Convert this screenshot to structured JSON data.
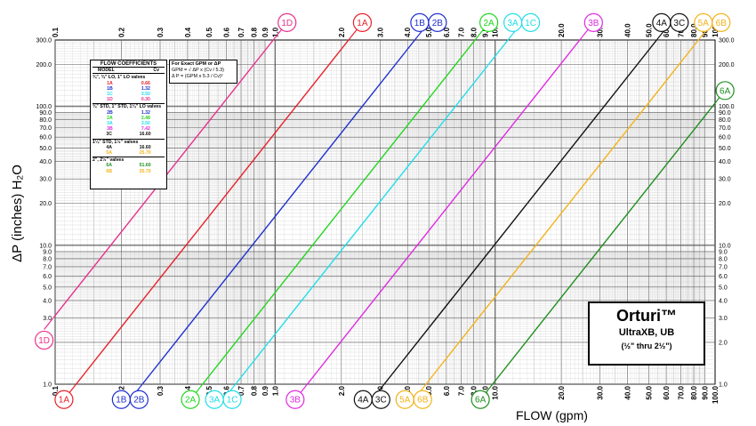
{
  "chart_data": {
    "type": "line",
    "title": "",
    "xlabel": "FLOW (gpm)",
    "ylabel": "ΔP (inches) H₂O",
    "x_scale": "log",
    "y_scale": "log",
    "xlim": [
      0.1,
      100.0
    ],
    "ylim": [
      1.0,
      300.0
    ],
    "x_tick_labels": [
      "0.1",
      "0.2",
      "0.3",
      "0.4",
      "0.5",
      "0.6",
      "0.7",
      "0.8",
      "0.9",
      "1.0",
      "2.0",
      "3.0",
      "4.0",
      "5.0",
      "6.0",
      "7.0",
      "8.0",
      "9.0",
      "10.0",
      "20.0",
      "30.0",
      "40.0",
      "50.0",
      "60.0",
      "70.0",
      "80.0",
      "90.0",
      "100.0"
    ],
    "y_tick_labels": [
      "1.0",
      "2.0",
      "3.0",
      "4.0",
      "5.0",
      "6.0",
      "7.0",
      "8.0",
      "9.0",
      "10.0",
      "20.0",
      "30.0",
      "40.0",
      "50.0",
      "60.0",
      "70.0",
      "80.0",
      "90.0",
      "100.0",
      "200.0",
      "300.0"
    ],
    "grid": true,
    "series": [
      {
        "name": "1A",
        "cv": 0.66,
        "color": "#e8202a",
        "labels": [
          "1A"
        ],
        "bubble_colors": [
          "#e8202a"
        ],
        "bottom_labels": [
          "1A"
        ]
      },
      {
        "name": "1B",
        "cv": 1.32,
        "color": "#1f2fd0",
        "labels": [
          "1B",
          "2B"
        ],
        "bubble_colors": [
          "#1f2fd0",
          "#1f2fd0"
        ],
        "bottom_labels": [
          "1B",
          "2B"
        ]
      },
      {
        "name": "1C",
        "cv": 3.5,
        "color": "#22dde8",
        "labels": [
          "3A",
          "1C"
        ],
        "bubble_colors": [
          "#22dde8",
          "#22dde8"
        ],
        "bottom_labels": [
          "3A",
          "1C"
        ]
      },
      {
        "name": "1D",
        "cv": 0.3,
        "color": "#e8308c",
        "labels": [
          "1D"
        ],
        "bubble_colors": [
          "#e8308c"
        ],
        "bottom_labels": [
          "1D"
        ]
      },
      {
        "name": "2A",
        "cv": 2.48,
        "color": "#22d61f",
        "labels": [
          "2A"
        ],
        "bubble_colors": [
          "#22d61f"
        ],
        "bottom_labels": [
          "2A"
        ]
      },
      {
        "name": "3B",
        "cv": 7.42,
        "color": "#e02ae0",
        "labels": [
          "3B"
        ],
        "bubble_colors": [
          "#e02ae0"
        ],
        "bottom_labels": [
          "3B"
        ]
      },
      {
        "name": "4A",
        "cv": 16.6,
        "color": "#111111",
        "labels": [
          "4A",
          "3C"
        ],
        "bubble_colors": [
          "#111111",
          "#111111"
        ],
        "bottom_labels": [
          "4A",
          "3C"
        ]
      },
      {
        "name": "5A",
        "cv": 25.7,
        "color": "#f3b21a",
        "labels": [
          "5A",
          "6B"
        ],
        "bubble_colors": [
          "#f3b21a",
          "#f3b21a"
        ],
        "bottom_labels": [
          "5A",
          "6B"
        ]
      },
      {
        "name": "6A",
        "cv": 51.6,
        "color": "#1e8f1e",
        "labels": [
          "6A"
        ],
        "bubble_colors": [
          "#1e8f1e"
        ],
        "bottom_labels": [
          "6A"
        ]
      }
    ]
  },
  "coefficients": {
    "title": "FLOW COEFFICIENTS",
    "col_model": "MODEL",
    "col_cv": "Cv",
    "groups": [
      {
        "label": "¾\", ¾\" LO, 1\" LO  valves",
        "rows": [
          {
            "model": "1A",
            "cv": "0.66",
            "color": "#e8202a"
          },
          {
            "model": "1B",
            "cv": "1.32",
            "color": "#1f2fd0"
          },
          {
            "model": "1C",
            "cv": "3.50",
            "color": "#22dde8"
          },
          {
            "model": "1D",
            "cv": "0.30",
            "color": "#e8308c"
          }
        ]
      },
      {
        "label": "¾\" STD, 1\" STD, 1¼\" LO  valves",
        "rows": [
          {
            "model": "2B",
            "cv": "1.32",
            "color": "#1f2fd0"
          },
          {
            "model": "2A",
            "cv": "2.48",
            "color": "#22d61f"
          },
          {
            "model": "3A",
            "cv": "3.50",
            "color": "#22dde8"
          },
          {
            "model": "3B",
            "cv": "7.42",
            "color": "#e02ae0"
          },
          {
            "model": "3C",
            "cv": "16.60",
            "color": "#111111"
          }
        ]
      },
      {
        "label": "1¼\" STD, 1½\" valves",
        "rows": [
          {
            "model": "4A",
            "cv": "16.60",
            "color": "#111111"
          },
          {
            "model": "5A",
            "cv": "25.70",
            "color": "#f3b21a"
          }
        ]
      },
      {
        "label": "2\", 2½\" valves",
        "rows": [
          {
            "model": "6A",
            "cv": "51.60",
            "color": "#1e8f1e"
          },
          {
            "model": "6B",
            "cv": "25.70",
            "color": "#f3b21a"
          }
        ]
      }
    ]
  },
  "formula": {
    "title": "For Exact GPM or ΔP",
    "line1": "GPM = √ ΔP x (Cv / 5.3)",
    "line2": "Δ P = (GPM x 5.3 / Cv)²"
  },
  "brand": {
    "name": "Orturi™",
    "product": "UltraXB, UB",
    "sizes": "(½\" thru 2½\")"
  }
}
